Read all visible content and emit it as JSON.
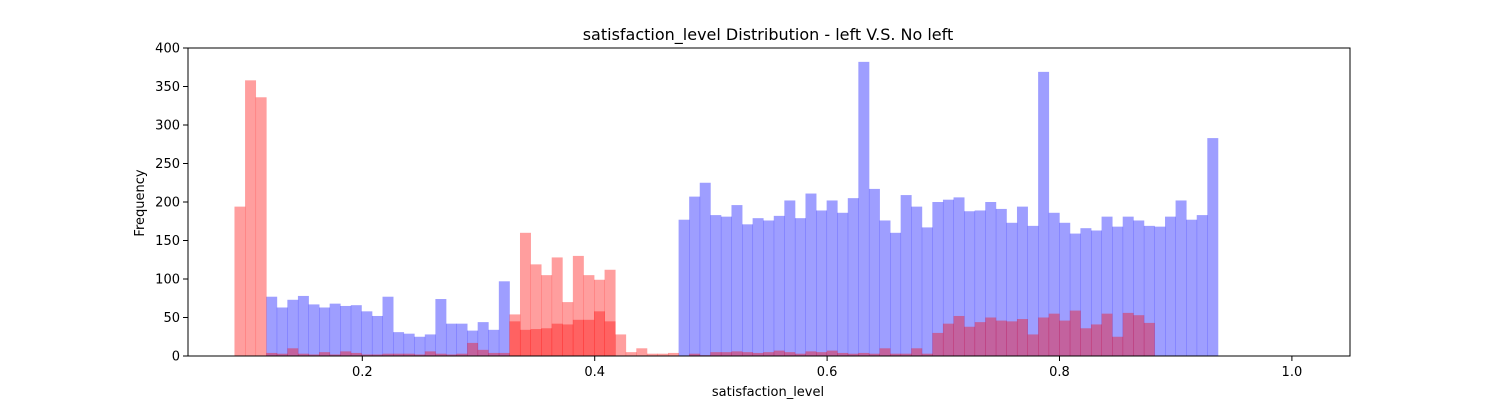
{
  "chart_data": {
    "type": "bar",
    "title": "satisfaction_level Distribution - left V.S. No left",
    "xlabel": "satisfaction_level",
    "ylabel": "Frequency",
    "xlim": [
      0.05,
      1.05
    ],
    "ylim": [
      0,
      400
    ],
    "x_ticks": [
      0.2,
      0.4,
      0.6,
      0.8,
      1.0
    ],
    "x_tick_labels": [
      "0.2",
      "0.4",
      "0.6",
      "0.8",
      "1.0"
    ],
    "y_ticks": [
      0,
      50,
      100,
      150,
      200,
      250,
      300,
      350,
      400
    ],
    "grid": false,
    "legend": "none",
    "bin_start": 0.09,
    "bin_width": 0.0091,
    "series": [
      {
        "color": "#0000ff",
        "opacity": 0.38,
        "values": [
          0,
          0,
          0,
          77,
          63,
          73,
          78,
          67,
          63,
          68,
          65,
          66,
          58,
          52,
          77,
          31,
          29,
          25,
          28,
          74,
          42,
          42,
          33,
          44,
          34,
          97,
          0,
          0,
          0,
          0,
          0,
          0,
          0,
          0,
          0,
          0,
          0,
          0,
          0,
          0,
          0,
          0,
          177,
          207,
          225,
          183,
          181,
          196,
          171,
          179,
          176,
          182,
          202,
          179,
          211,
          189,
          202,
          186,
          205,
          382,
          217,
          176,
          160,
          209,
          194,
          167,
          200,
          203,
          206,
          188,
          189,
          200,
          191,
          173,
          194,
          169,
          369,
          186,
          173,
          159,
          166,
          163,
          181,
          168,
          181,
          176,
          169,
          168,
          181,
          202,
          177,
          183,
          283
        ]
      },
      {
        "color": "#ff0000",
        "opacity": 0.38,
        "values": [
          194,
          358,
          336,
          4,
          3,
          10,
          3,
          2,
          5,
          2,
          6,
          4,
          2,
          2,
          3,
          3,
          3,
          2,
          6,
          3,
          2,
          3,
          17,
          8,
          4,
          4,
          45,
          34,
          35,
          36,
          42,
          41,
          47,
          47,
          58,
          45,
          28,
          5,
          10,
          3,
          3,
          4,
          0,
          3,
          1,
          5,
          5,
          6,
          5,
          4,
          5,
          7,
          5,
          3,
          6,
          5,
          7,
          4,
          3,
          4,
          3,
          10,
          3,
          3,
          10,
          3,
          30,
          42,
          52,
          38,
          44,
          50,
          46,
          45,
          48,
          28,
          50,
          55,
          46,
          59,
          36,
          41,
          55,
          25,
          56,
          53,
          43,
          0,
          0,
          0,
          0,
          0,
          0
        ]
      },
      {
        "color": "#ff0000",
        "opacity": 0.38,
        "values": [
          0,
          0,
          0,
          0,
          0,
          0,
          0,
          0,
          0,
          0,
          0,
          0,
          0,
          0,
          0,
          0,
          0,
          0,
          0,
          0,
          0,
          0,
          0,
          0,
          0,
          0,
          54,
          160,
          119,
          105,
          128,
          70,
          130,
          105,
          99,
          112,
          0,
          0,
          0,
          0,
          0,
          0,
          0,
          0,
          0,
          0,
          0,
          0,
          0,
          0,
          0,
          0,
          0,
          0,
          0,
          0,
          0,
          0,
          0,
          0,
          0,
          0,
          0,
          0,
          0,
          0,
          0,
          0,
          0,
          0,
          0,
          0,
          0,
          0,
          0,
          0,
          0,
          0,
          0,
          0,
          0,
          0,
          0,
          0,
          0,
          0,
          0,
          0,
          0,
          0,
          0,
          0,
          0
        ]
      }
    ]
  }
}
